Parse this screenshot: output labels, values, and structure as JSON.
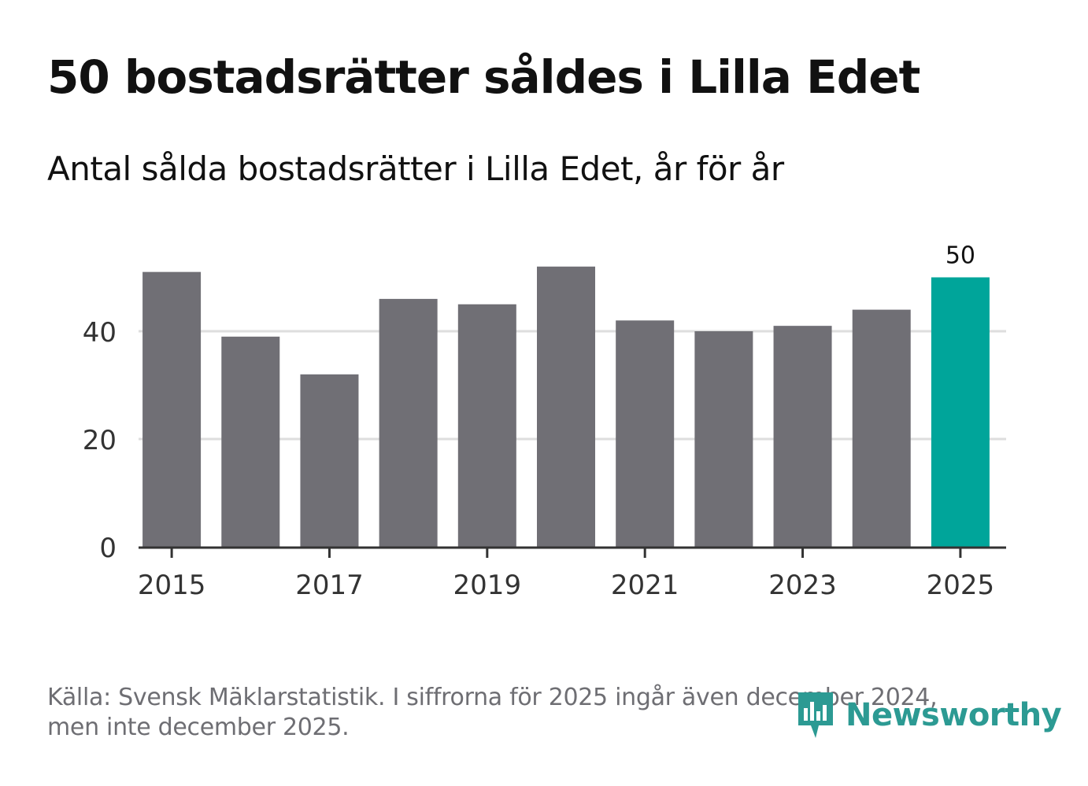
{
  "chart_data": {
    "type": "bar",
    "title": "50 bostadsrätter såldes i Lilla Edet",
    "subtitle": "Antal sålda bostadsrätter i Lilla Edet, år för år",
    "categories": [
      "2015",
      "2016",
      "2017",
      "2018",
      "2019",
      "2020",
      "2021",
      "2022",
      "2023",
      "2024",
      "2025"
    ],
    "values": [
      51,
      39,
      32,
      46,
      45,
      52,
      42,
      40,
      41,
      44,
      50
    ],
    "x_tick_labels": [
      "2015",
      "2017",
      "2019",
      "2021",
      "2023",
      "2025"
    ],
    "y_ticks": [
      0,
      20,
      40
    ],
    "ylim": [
      0,
      56
    ],
    "xlabel": "",
    "ylabel": "",
    "highlight_index": 10,
    "highlight_label": "50",
    "grid": true,
    "colors": {
      "bar": "#706f75",
      "highlight": "#00a59a",
      "grid": "#dedede",
      "axis": "#333333",
      "tick_text": "#333333"
    }
  },
  "footer": {
    "source_line1": "Källa: Svensk Mäklarstatistik. I siffrorna för 2025 ingår även december 2024,",
    "source_line2": "men inte december 2025."
  },
  "logo": {
    "text": "Newsworthy",
    "icon": "newsworthy-logo-icon",
    "color": "#2c9a93"
  }
}
